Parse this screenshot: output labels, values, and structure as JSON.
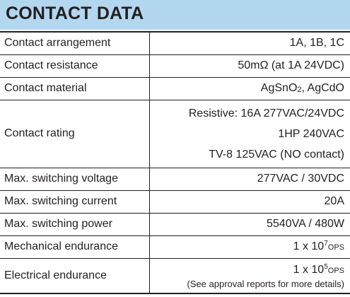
{
  "title": "CONTACT DATA",
  "rows": [
    {
      "label": "Contact arrangement",
      "value": "1A, 1B, 1C"
    },
    {
      "label": "Contact resistance",
      "value": "50mΩ (at 1A 24VDC)"
    },
    {
      "label": "Contact material",
      "value_parts": {
        "a": "AgSnO",
        "a_sub": "2",
        "b": ", AgCdO"
      }
    },
    {
      "label": "Contact rating",
      "values": [
        "Resistive: 16A  277VAC/24VDC",
        "1HP  240VAC",
        "TV-8  125VAC (NO contact)"
      ]
    },
    {
      "label": "Max. switching voltage",
      "value": "277VAC / 30VDC"
    },
    {
      "label": "Max. switching current",
      "value": "20A"
    },
    {
      "label": "Max. switching power",
      "value": "5540VA / 480W"
    },
    {
      "label": "Mechanical endurance",
      "value_parts": {
        "base": "1 x 10",
        "exp": "7",
        "unit": "OPS"
      }
    },
    {
      "label": "Electrical endurance",
      "value_parts": {
        "base": "1 x 10",
        "exp": "5",
        "unit": "OPS"
      },
      "note": "(See approval reports for more details)"
    }
  ]
}
